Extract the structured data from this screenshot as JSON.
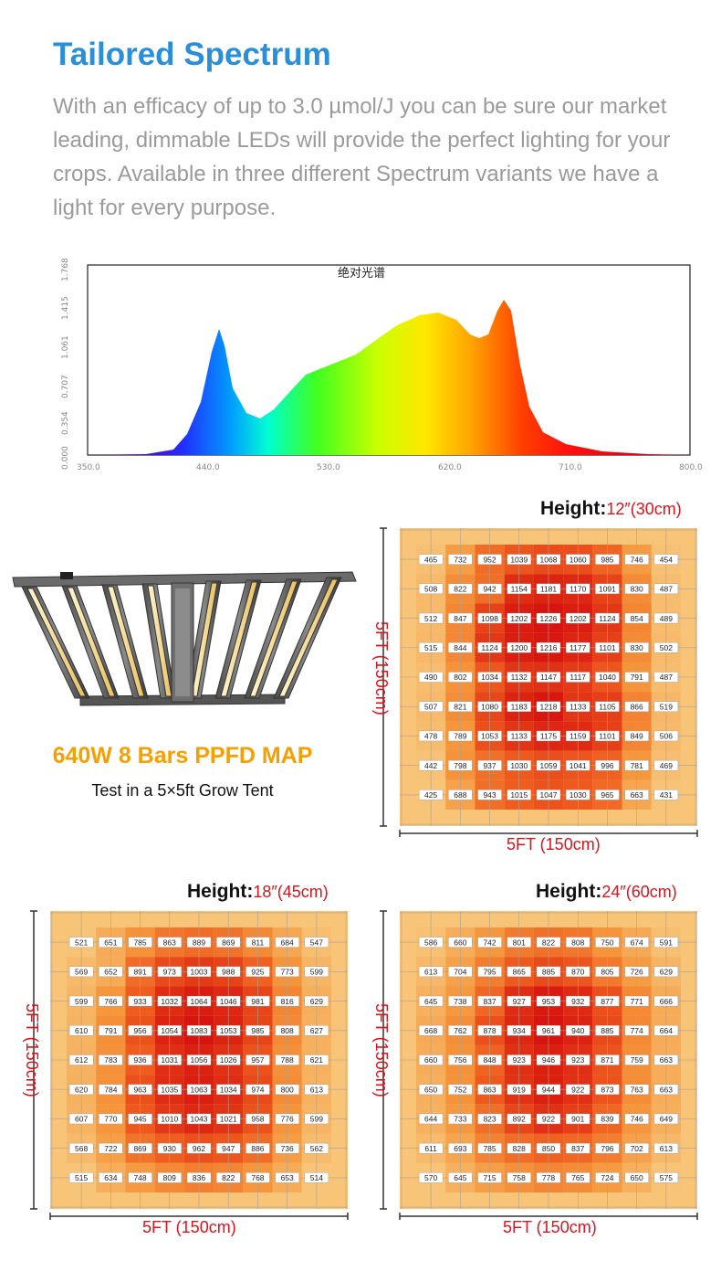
{
  "header": {
    "title": "Tailored Spectrum",
    "description": "With an efficacy of up to 3.0 µmol/J you can be sure our market leading, dimmable LEDs will provide the perfect lighting for your crops.  Available in three different Spectrum variants we have a light for every purpose."
  },
  "spectrum_chart": {
    "title": "绝对光谱",
    "x_ticks": [
      "350.0",
      "440.0",
      "530.0",
      "620.0",
      "710.0",
      "800.0"
    ],
    "y_ticks": [
      "0.000",
      "0.354",
      "0.707",
      "1.061",
      "1.415",
      "1.768"
    ]
  },
  "product": {
    "caption": "640W 8 Bars PPFD MAP",
    "subcaption": "Test in a 5×5ft Grow Tent"
  },
  "maps": [
    {
      "height_label": "Height:",
      "height_value": "12″(30cm)",
      "x_label": "5FT (150cm)",
      "y_label": "5FT (150cm)",
      "grid": [
        [
          465,
          732,
          952,
          1039,
          1068,
          1060,
          985,
          746,
          454
        ],
        [
          508,
          822,
          942,
          1154,
          1181,
          1170,
          1091,
          830,
          487
        ],
        [
          512,
          847,
          1098,
          1202,
          1226,
          1202,
          1124,
          854,
          489
        ],
        [
          515,
          844,
          1124,
          1200,
          1216,
          1177,
          1101,
          830,
          502
        ],
        [
          490,
          802,
          1034,
          1132,
          1147,
          1117,
          1040,
          791,
          487
        ],
        [
          507,
          821,
          1080,
          1183,
          1218,
          1133,
          1105,
          866,
          519
        ],
        [
          478,
          789,
          1053,
          1133,
          1175,
          1159,
          1101,
          849,
          506
        ],
        [
          442,
          798,
          937,
          1030,
          1059,
          1041,
          996,
          781,
          469
        ],
        [
          425,
          688,
          943,
          1015,
          1047,
          1030,
          965,
          663,
          431
        ]
      ]
    },
    {
      "height_label": "Height:",
      "height_value": "18″(45cm)",
      "x_label": "5FT (150cm)",
      "y_label": "5FT (150cm)",
      "grid": [
        [
          521,
          651,
          785,
          863,
          889,
          869,
          811,
          684,
          547
        ],
        [
          569,
          652,
          891,
          973,
          1003,
          988,
          925,
          773,
          599
        ],
        [
          599,
          766,
          933,
          1032,
          1064,
          1046,
          981,
          816,
          629
        ],
        [
          610,
          791,
          956,
          1054,
          1083,
          1053,
          985,
          808,
          627
        ],
        [
          612,
          783,
          936,
          1031,
          1056,
          1026,
          957,
          788,
          621
        ],
        [
          620,
          784,
          963,
          1035,
          1063,
          1034,
          974,
          800,
          613
        ],
        [
          607,
          770,
          945,
          1010,
          1043,
          1021,
          958,
          776,
          599
        ],
        [
          568,
          722,
          869,
          930,
          962,
          947,
          886,
          736,
          562
        ],
        [
          515,
          634,
          748,
          809,
          836,
          822,
          768,
          653,
          514
        ]
      ]
    },
    {
      "height_label": "Height:",
      "height_value": "24″(60cm)",
      "x_label": "5FT (150cm)",
      "y_label": "5FT (150cm)",
      "grid": [
        [
          586,
          660,
          742,
          801,
          822,
          808,
          750,
          674,
          591
        ],
        [
          613,
          704,
          795,
          865,
          885,
          870,
          805,
          726,
          629
        ],
        [
          645,
          738,
          837,
          927,
          953,
          932,
          877,
          771,
          666
        ],
        [
          668,
          762,
          878,
          934,
          961,
          940,
          885,
          774,
          664
        ],
        [
          660,
          756,
          848,
          923,
          946,
          923,
          871,
          759,
          663
        ],
        [
          650,
          752,
          863,
          919,
          944,
          922,
          873,
          763,
          663
        ],
        [
          644,
          733,
          823,
          892,
          922,
          901,
          839,
          746,
          649
        ],
        [
          611,
          693,
          785,
          828,
          850,
          837,
          796,
          702,
          613
        ],
        [
          570,
          645,
          715,
          758,
          778,
          765,
          724,
          650,
          575
        ]
      ]
    }
  ]
}
